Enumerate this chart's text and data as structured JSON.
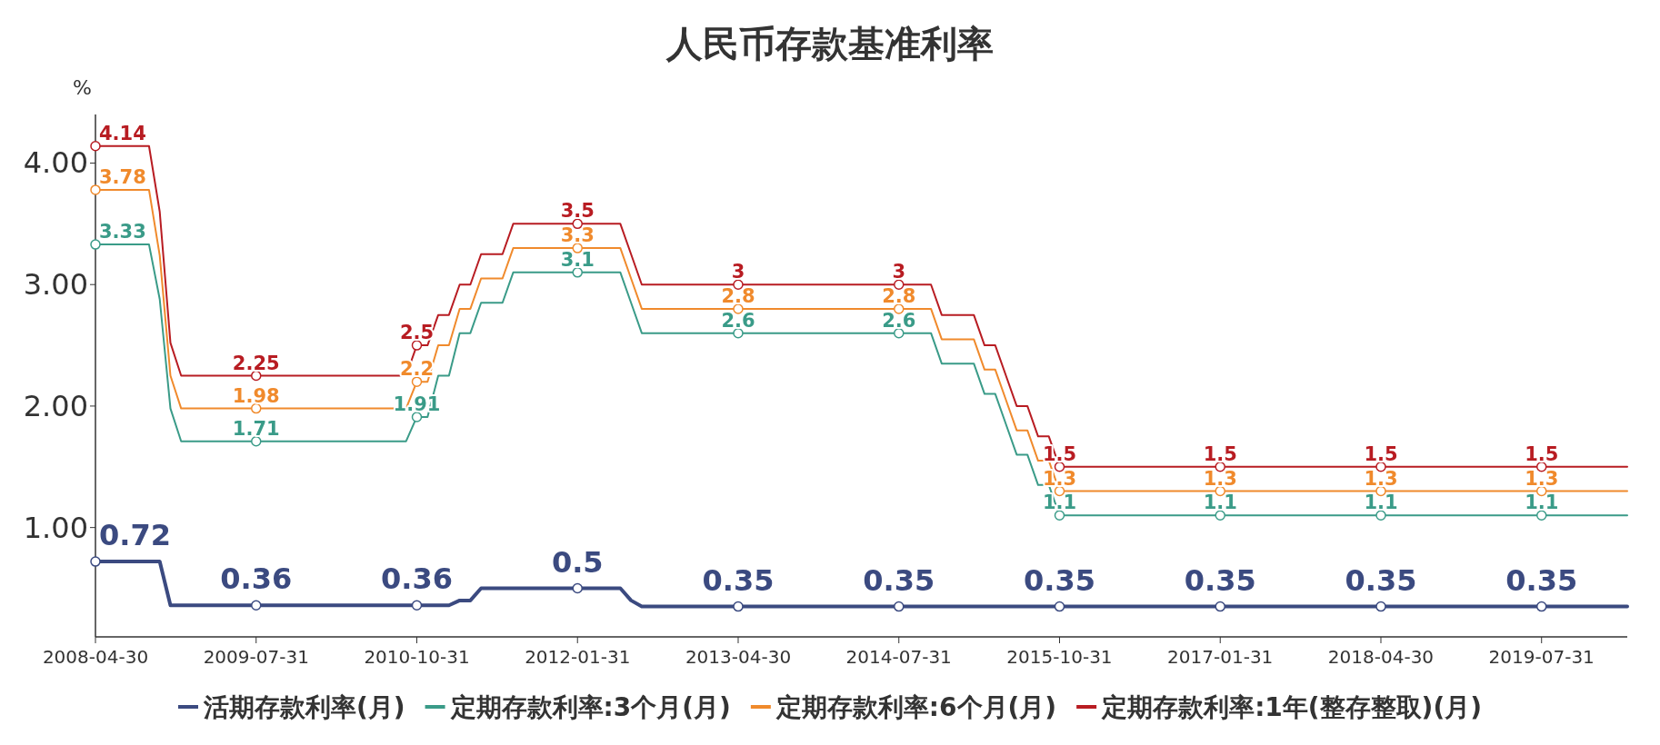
{
  "chart_data": {
    "type": "line",
    "title": "人民币存款基准利率",
    "ylabel": "%",
    "categories": [
      "2008-04-30",
      null,
      null,
      null,
      null,
      null,
      null,
      null,
      null,
      null,
      null,
      null,
      null,
      null,
      null,
      "2009-07-31",
      null,
      null,
      null,
      null,
      null,
      null,
      null,
      null,
      null,
      null,
      null,
      null,
      null,
      null,
      "2010-10-31",
      null,
      null,
      null,
      null,
      null,
      null,
      null,
      null,
      null,
      null,
      null,
      null,
      null,
      null,
      "2012-01-31",
      null,
      null,
      null,
      null,
      null,
      null,
      null,
      null,
      null,
      null,
      null,
      null,
      null,
      null,
      "2013-04-30",
      null,
      null,
      null,
      null,
      null,
      null,
      null,
      null,
      null,
      null,
      null,
      null,
      null,
      null,
      "2014-07-31",
      null,
      null,
      null,
      null,
      null,
      null,
      null,
      null,
      null,
      null,
      null,
      null,
      null,
      null,
      "2015-10-31",
      null,
      null,
      null,
      null,
      null,
      null,
      null,
      null,
      null,
      null,
      null,
      null,
      null,
      null,
      "2017-01-31",
      null,
      null,
      null,
      null,
      null,
      null,
      null,
      null,
      null,
      null,
      null,
      null,
      null,
      null,
      "2018-04-30",
      null,
      null,
      null,
      null,
      null,
      null,
      null,
      null,
      null,
      null,
      null,
      null,
      null,
      null,
      "2019-07-31",
      null,
      null,
      null,
      null,
      null,
      null,
      null,
      null
    ],
    "ylim": [
      0.1,
      4.4
    ],
    "yticks": [
      {
        "value": 1,
        "label": "1.00"
      },
      {
        "value": 2,
        "label": "2.00"
      },
      {
        "value": 3,
        "label": "3.00"
      },
      {
        "value": 4,
        "label": "4.00"
      }
    ],
    "legend": "bottom",
    "series": [
      {
        "name": "活期存款利率(月)",
        "color": "#3b4a80",
        "values": [
          0.72,
          0.72,
          0.72,
          0.72,
          0.72,
          0.72,
          0.72,
          0.36,
          0.36,
          0.36,
          0.36,
          0.36,
          0.36,
          0.36,
          0.36,
          0.36,
          0.36,
          0.36,
          0.36,
          0.36,
          0.36,
          0.36,
          0.36,
          0.36,
          0.36,
          0.36,
          0.36,
          0.36,
          0.36,
          0.36,
          0.36,
          0.36,
          0.36,
          0.36,
          0.4,
          0.4,
          0.5,
          0.5,
          0.5,
          0.5,
          0.5,
          0.5,
          0.5,
          0.5,
          0.5,
          0.5,
          0.5,
          0.5,
          0.5,
          0.5,
          0.4,
          0.35,
          0.35,
          0.35,
          0.35,
          0.35,
          0.35,
          0.35,
          0.35,
          0.35,
          0.35,
          0.35,
          0.35,
          0.35,
          0.35,
          0.35,
          0.35,
          0.35,
          0.35,
          0.35,
          0.35,
          0.35,
          0.35,
          0.35,
          0.35,
          0.35,
          0.35,
          0.35,
          0.35,
          0.35,
          0.35,
          0.35,
          0.35,
          0.35,
          0.35,
          0.35,
          0.35,
          0.35,
          0.35,
          0.35,
          0.35,
          0.35,
          0.35,
          0.35,
          0.35,
          0.35,
          0.35,
          0.35,
          0.35,
          0.35,
          0.35,
          0.35,
          0.35,
          0.35,
          0.35,
          0.35,
          0.35,
          0.35,
          0.35,
          0.35,
          0.35,
          0.35,
          0.35,
          0.35,
          0.35,
          0.35,
          0.35,
          0.35,
          0.35,
          0.35,
          0.35,
          0.35,
          0.35,
          0.35,
          0.35,
          0.35,
          0.35,
          0.35,
          0.35,
          0.35,
          0.35,
          0.35,
          0.35,
          0.35,
          0.35,
          0.35,
          0.35,
          0.35,
          0.35,
          0.35,
          0.35,
          0.35,
          0.35,
          0.35
        ],
        "value_labels": [
          "0.72",
          null,
          null,
          null,
          null,
          null,
          null,
          null,
          null,
          null,
          null,
          null,
          null,
          null,
          null,
          "0.36",
          null,
          null,
          null,
          null,
          null,
          null,
          null,
          null,
          null,
          null,
          null,
          null,
          null,
          null,
          "0.36",
          null,
          null,
          null,
          null,
          null,
          null,
          null,
          null,
          null,
          null,
          null,
          null,
          null,
          null,
          "0.5",
          null,
          null,
          null,
          null,
          null,
          null,
          null,
          null,
          null,
          null,
          null,
          null,
          null,
          null,
          "0.35",
          null,
          null,
          null,
          null,
          null,
          null,
          null,
          null,
          null,
          null,
          null,
          null,
          null,
          null,
          "0.35",
          null,
          null,
          null,
          null,
          null,
          null,
          null,
          null,
          null,
          null,
          null,
          null,
          null,
          null,
          "0.35",
          null,
          null,
          null,
          null,
          null,
          null,
          null,
          null,
          null,
          null,
          null,
          null,
          null,
          null,
          "0.35",
          null,
          null,
          null,
          null,
          null,
          null,
          null,
          null,
          null,
          null,
          null,
          null,
          null,
          null,
          "0.35",
          null,
          null,
          null,
          null,
          null,
          null,
          null,
          null,
          null,
          null,
          null,
          null,
          null,
          null,
          "0.35",
          null,
          null,
          null,
          null,
          null,
          null,
          null,
          null
        ]
      },
      {
        "name": "定期存款利率:3个月(月)",
        "color": "#3a9b88",
        "values": [
          3.33,
          3.33,
          3.33,
          3.33,
          3.33,
          3.33,
          2.88,
          1.98,
          1.71,
          1.71,
          1.71,
          1.71,
          1.71,
          1.71,
          1.71,
          1.71,
          1.71,
          1.71,
          1.71,
          1.71,
          1.71,
          1.71,
          1.71,
          1.71,
          1.71,
          1.71,
          1.71,
          1.71,
          1.71,
          1.71,
          1.91,
          1.91,
          2.25,
          2.25,
          2.6,
          2.6,
          2.85,
          2.85,
          2.85,
          3.1,
          3.1,
          3.1,
          3.1,
          3.1,
          3.1,
          3.1,
          3.1,
          3.1,
          3.1,
          3.1,
          2.85,
          2.6,
          2.6,
          2.6,
          2.6,
          2.6,
          2.6,
          2.6,
          2.6,
          2.6,
          2.6,
          2.6,
          2.6,
          2.6,
          2.6,
          2.6,
          2.6,
          2.6,
          2.6,
          2.6,
          2.6,
          2.6,
          2.6,
          2.6,
          2.6,
          2.6,
          2.6,
          2.6,
          2.6,
          2.35,
          2.35,
          2.35,
          2.35,
          2.1,
          2.1,
          1.85,
          1.6,
          1.6,
          1.35,
          1.35,
          1.1,
          1.1,
          1.1,
          1.1,
          1.1,
          1.1,
          1.1,
          1.1,
          1.1,
          1.1,
          1.1,
          1.1,
          1.1,
          1.1,
          1.1,
          1.1,
          1.1,
          1.1,
          1.1,
          1.1,
          1.1,
          1.1,
          1.1,
          1.1,
          1.1,
          1.1,
          1.1,
          1.1,
          1.1,
          1.1,
          1.1,
          1.1,
          1.1,
          1.1,
          1.1,
          1.1,
          1.1,
          1.1,
          1.1,
          1.1,
          1.1,
          1.1,
          1.1,
          1.1,
          1.1,
          1.1,
          1.1,
          1.1,
          1.1,
          1.1,
          1.1,
          1.1,
          1.1,
          1.1
        ],
        "value_labels": [
          "3.33",
          null,
          null,
          null,
          null,
          null,
          null,
          null,
          null,
          null,
          null,
          null,
          null,
          null,
          null,
          "1.71",
          null,
          null,
          null,
          null,
          null,
          null,
          null,
          null,
          null,
          null,
          null,
          null,
          null,
          null,
          "1.91",
          null,
          null,
          null,
          null,
          null,
          null,
          null,
          null,
          null,
          null,
          null,
          null,
          null,
          null,
          "3.1",
          null,
          null,
          null,
          null,
          null,
          null,
          null,
          null,
          null,
          null,
          null,
          null,
          null,
          null,
          "2.6",
          null,
          null,
          null,
          null,
          null,
          null,
          null,
          null,
          null,
          null,
          null,
          null,
          null,
          null,
          "2.6",
          null,
          null,
          null,
          null,
          null,
          null,
          null,
          null,
          null,
          null,
          null,
          null,
          null,
          null,
          "1.1",
          null,
          null,
          null,
          null,
          null,
          null,
          null,
          null,
          null,
          null,
          null,
          null,
          null,
          null,
          "1.1",
          null,
          null,
          null,
          null,
          null,
          null,
          null,
          null,
          null,
          null,
          null,
          null,
          null,
          null,
          "1.1",
          null,
          null,
          null,
          null,
          null,
          null,
          null,
          null,
          null,
          null,
          null,
          null,
          null,
          null,
          "1.1",
          null,
          null,
          null,
          null,
          null,
          null,
          null,
          null
        ]
      },
      {
        "name": "定期存款利率:6个月(月)",
        "color": "#f08a2c",
        "values": [
          3.78,
          3.78,
          3.78,
          3.78,
          3.78,
          3.78,
          3.24,
          2.25,
          1.98,
          1.98,
          1.98,
          1.98,
          1.98,
          1.98,
          1.98,
          1.98,
          1.98,
          1.98,
          1.98,
          1.98,
          1.98,
          1.98,
          1.98,
          1.98,
          1.98,
          1.98,
          1.98,
          1.98,
          1.98,
          1.98,
          2.2,
          2.2,
          2.5,
          2.5,
          2.8,
          2.8,
          3.05,
          3.05,
          3.05,
          3.3,
          3.3,
          3.3,
          3.3,
          3.3,
          3.3,
          3.3,
          3.3,
          3.3,
          3.3,
          3.3,
          3.05,
          2.8,
          2.8,
          2.8,
          2.8,
          2.8,
          2.8,
          2.8,
          2.8,
          2.8,
          2.8,
          2.8,
          2.8,
          2.8,
          2.8,
          2.8,
          2.8,
          2.8,
          2.8,
          2.8,
          2.8,
          2.8,
          2.8,
          2.8,
          2.8,
          2.8,
          2.8,
          2.8,
          2.8,
          2.55,
          2.55,
          2.55,
          2.55,
          2.3,
          2.3,
          2.05,
          1.8,
          1.8,
          1.55,
          1.55,
          1.3,
          1.3,
          1.3,
          1.3,
          1.3,
          1.3,
          1.3,
          1.3,
          1.3,
          1.3,
          1.3,
          1.3,
          1.3,
          1.3,
          1.3,
          1.3,
          1.3,
          1.3,
          1.3,
          1.3,
          1.3,
          1.3,
          1.3,
          1.3,
          1.3,
          1.3,
          1.3,
          1.3,
          1.3,
          1.3,
          1.3,
          1.3,
          1.3,
          1.3,
          1.3,
          1.3,
          1.3,
          1.3,
          1.3,
          1.3,
          1.3,
          1.3,
          1.3,
          1.3,
          1.3,
          1.3,
          1.3,
          1.3,
          1.3,
          1.3,
          1.3,
          1.3,
          1.3,
          1.3
        ],
        "value_labels": [
          "3.78",
          null,
          null,
          null,
          null,
          null,
          null,
          null,
          null,
          null,
          null,
          null,
          null,
          null,
          null,
          "1.98",
          null,
          null,
          null,
          null,
          null,
          null,
          null,
          null,
          null,
          null,
          null,
          null,
          null,
          null,
          "2.2",
          null,
          null,
          null,
          null,
          null,
          null,
          null,
          null,
          null,
          null,
          null,
          null,
          null,
          null,
          "3.3",
          null,
          null,
          null,
          null,
          null,
          null,
          null,
          null,
          null,
          null,
          null,
          null,
          null,
          null,
          "2.8",
          null,
          null,
          null,
          null,
          null,
          null,
          null,
          null,
          null,
          null,
          null,
          null,
          null,
          null,
          "2.8",
          null,
          null,
          null,
          null,
          null,
          null,
          null,
          null,
          null,
          null,
          null,
          null,
          null,
          null,
          "1.3",
          null,
          null,
          null,
          null,
          null,
          null,
          null,
          null,
          null,
          null,
          null,
          null,
          null,
          null,
          "1.3",
          null,
          null,
          null,
          null,
          null,
          null,
          null,
          null,
          null,
          null,
          null,
          null,
          null,
          null,
          "1.3",
          null,
          null,
          null,
          null,
          null,
          null,
          null,
          null,
          null,
          null,
          null,
          null,
          null,
          null,
          "1.3",
          null,
          null,
          null,
          null,
          null,
          null,
          null,
          null
        ]
      },
      {
        "name": "定期存款利率:1年(整存整取)(月)",
        "color": "#b81c22",
        "values": [
          4.14,
          4.14,
          4.14,
          4.14,
          4.14,
          4.14,
          3.6,
          2.52,
          2.25,
          2.25,
          2.25,
          2.25,
          2.25,
          2.25,
          2.25,
          2.25,
          2.25,
          2.25,
          2.25,
          2.25,
          2.25,
          2.25,
          2.25,
          2.25,
          2.25,
          2.25,
          2.25,
          2.25,
          2.25,
          2.25,
          2.5,
          2.5,
          2.75,
          2.75,
          3.0,
          3.0,
          3.25,
          3.25,
          3.25,
          3.5,
          3.5,
          3.5,
          3.5,
          3.5,
          3.5,
          3.5,
          3.5,
          3.5,
          3.5,
          3.5,
          3.25,
          3.0,
          3.0,
          3.0,
          3.0,
          3.0,
          3.0,
          3.0,
          3.0,
          3.0,
          3.0,
          3.0,
          3.0,
          3.0,
          3.0,
          3.0,
          3.0,
          3.0,
          3.0,
          3.0,
          3.0,
          3.0,
          3.0,
          3.0,
          3.0,
          3.0,
          3.0,
          3.0,
          3.0,
          2.75,
          2.75,
          2.75,
          2.75,
          2.5,
          2.5,
          2.25,
          2.0,
          2.0,
          1.75,
          1.75,
          1.5,
          1.5,
          1.5,
          1.5,
          1.5,
          1.5,
          1.5,
          1.5,
          1.5,
          1.5,
          1.5,
          1.5,
          1.5,
          1.5,
          1.5,
          1.5,
          1.5,
          1.5,
          1.5,
          1.5,
          1.5,
          1.5,
          1.5,
          1.5,
          1.5,
          1.5,
          1.5,
          1.5,
          1.5,
          1.5,
          1.5,
          1.5,
          1.5,
          1.5,
          1.5,
          1.5,
          1.5,
          1.5,
          1.5,
          1.5,
          1.5,
          1.5,
          1.5,
          1.5,
          1.5,
          1.5,
          1.5,
          1.5,
          1.5,
          1.5,
          1.5,
          1.5,
          1.5,
          1.5
        ],
        "value_labels": [
          "4.14",
          null,
          null,
          null,
          null,
          null,
          null,
          null,
          null,
          null,
          null,
          null,
          null,
          null,
          null,
          "2.25",
          null,
          null,
          null,
          null,
          null,
          null,
          null,
          null,
          null,
          null,
          null,
          null,
          null,
          null,
          "2.5",
          null,
          null,
          null,
          null,
          null,
          null,
          null,
          null,
          null,
          null,
          null,
          null,
          null,
          null,
          "3.5",
          null,
          null,
          null,
          null,
          null,
          null,
          null,
          null,
          null,
          null,
          null,
          null,
          null,
          null,
          "3",
          null,
          null,
          null,
          null,
          null,
          null,
          null,
          null,
          null,
          null,
          null,
          null,
          null,
          null,
          "3",
          null,
          null,
          null,
          null,
          null,
          null,
          null,
          null,
          null,
          null,
          null,
          null,
          null,
          null,
          "1.5",
          null,
          null,
          null,
          null,
          null,
          null,
          null,
          null,
          null,
          null,
          null,
          null,
          null,
          null,
          "1.5",
          null,
          null,
          null,
          null,
          null,
          null,
          null,
          null,
          null,
          null,
          null,
          null,
          null,
          null,
          "1.5",
          null,
          null,
          null,
          null,
          null,
          null,
          null,
          null,
          null,
          null,
          null,
          null,
          null,
          null,
          "1.5",
          null,
          null,
          null,
          null,
          null,
          null,
          null,
          null
        ]
      }
    ]
  }
}
